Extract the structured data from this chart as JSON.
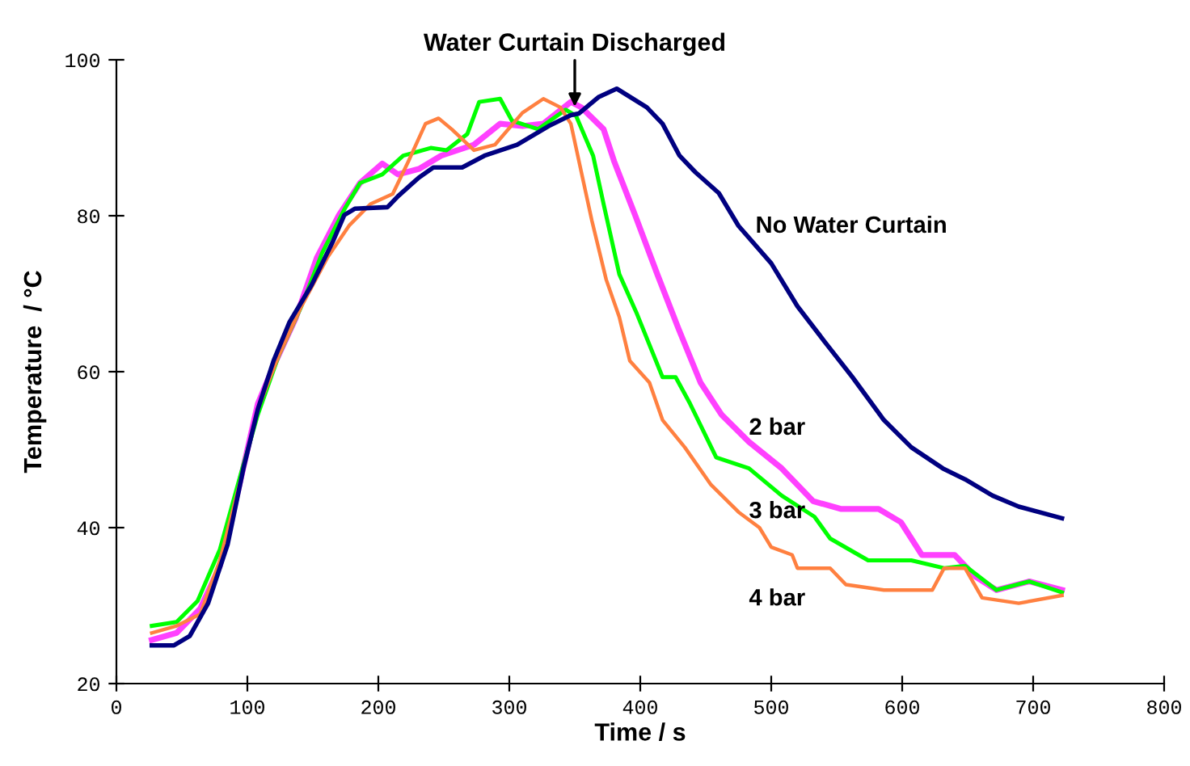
{
  "chart_data": {
    "type": "line",
    "xlabel": "Time / s",
    "ylabel": "Temperature  / °C",
    "xlim": [
      0,
      800
    ],
    "xticks": [
      0,
      100,
      200,
      300,
      400,
      500,
      600,
      700,
      800
    ],
    "ylim": [
      20,
      100
    ],
    "yticks": [
      20,
      40,
      60,
      80,
      100
    ],
    "grid": false,
    "legend": false,
    "marker": "none",
    "line_style": "solid",
    "annotations": [
      {
        "text": "Water Curtain Discharged",
        "x": 350,
        "y": 94
      }
    ],
    "series": [
      {
        "name": "No Water Curtain",
        "color": "#000080",
        "x": [
          27,
          44,
          56,
          70,
          85,
          97,
          108,
          120,
          132,
          149,
          165,
          174,
          182,
          207,
          215,
          231,
          242,
          264,
          281,
          306,
          330,
          347,
          353,
          368,
          382,
          405,
          417,
          430,
          442,
          460,
          475,
          500,
          520,
          541,
          562,
          586,
          607,
          631,
          648,
          669,
          689,
          722
        ],
        "values": [
          24.9,
          24.9,
          26.1,
          30.3,
          37.9,
          47.6,
          55.2,
          61.4,
          66.3,
          71.1,
          76.6,
          80.1,
          80.9,
          81.1,
          82.5,
          84.9,
          86.2,
          86.2,
          87.7,
          89.1,
          91.5,
          92.9,
          93.1,
          95.2,
          96.3,
          93.9,
          91.8,
          87.7,
          85.6,
          82.9,
          78.7,
          73.9,
          68.4,
          63.8,
          59.3,
          53.8,
          50.3,
          47.6,
          46.2,
          44.1,
          42.7,
          41.2
        ]
      },
      {
        "name": "2 bar",
        "color": "#ff40ff",
        "x": [
          27,
          46,
          64,
          79,
          93,
          108,
          120,
          137,
          153,
          170,
          186,
          203,
          215,
          231,
          248,
          273,
          293,
          310,
          326,
          347,
          355,
          372,
          380,
          396,
          413,
          429,
          446,
          462,
          483,
          508,
          532,
          553,
          582,
          599,
          615,
          640,
          656,
          672,
          697,
          722
        ],
        "values": [
          25.6,
          26.5,
          29.6,
          35.1,
          44.8,
          55.9,
          60.7,
          66.9,
          74.6,
          80.1,
          84.2,
          86.7,
          85.3,
          86.0,
          87.7,
          89.1,
          91.8,
          91.5,
          91.8,
          94.6,
          93.9,
          91.1,
          87.0,
          80.1,
          72.5,
          65.6,
          58.6,
          54.5,
          51.0,
          47.6,
          43.4,
          42.4,
          42.4,
          40.7,
          36.5,
          36.5,
          33.7,
          32.0,
          33.1,
          32.0
        ]
      },
      {
        "name": "3 bar",
        "color": "#00ff00",
        "x": [
          27,
          46,
          62,
          79,
          95,
          108,
          124,
          141,
          157,
          174,
          186,
          203,
          219,
          240,
          252,
          268,
          277,
          293,
          302,
          322,
          343,
          351,
          364,
          372,
          384,
          397,
          417,
          427,
          438,
          458,
          483,
          508,
          533,
          545,
          574,
          607,
          632,
          648,
          672,
          697,
          722
        ],
        "values": [
          27.4,
          27.9,
          30.6,
          37.2,
          46.9,
          54.5,
          62.1,
          68.3,
          75.2,
          80.8,
          84.2,
          85.3,
          87.7,
          88.7,
          88.4,
          90.5,
          94.6,
          95.0,
          92.2,
          91.1,
          93.6,
          92.8,
          87.7,
          81.5,
          72.5,
          67.6,
          59.3,
          59.3,
          55.9,
          49.0,
          47.6,
          44.1,
          41.4,
          38.6,
          35.8,
          35.8,
          34.8,
          35.1,
          32.0,
          33.1,
          31.7
        ]
      },
      {
        "name": "4 bar",
        "color": "#ff8040",
        "x": [
          27,
          46,
          64,
          79,
          95,
          108,
          124,
          141,
          161,
          178,
          194,
          211,
          223,
          236,
          246,
          256,
          273,
          289,
          310,
          326,
          339,
          347,
          355,
          363,
          374,
          384,
          392,
          407,
          417,
          434,
          454,
          475,
          491,
          500,
          516,
          520,
          545,
          557,
          586,
          623,
          632,
          648,
          661,
          689,
          722
        ],
        "values": [
          26.5,
          27.4,
          28.9,
          35.8,
          46.2,
          55.2,
          62.1,
          68.3,
          74.6,
          78.8,
          81.5,
          82.8,
          87.0,
          91.8,
          92.5,
          91.1,
          88.4,
          89.1,
          93.2,
          95.0,
          93.9,
          91.8,
          85.6,
          79.4,
          71.8,
          67.0,
          61.4,
          58.6,
          53.8,
          50.3,
          45.5,
          42.0,
          40.0,
          37.5,
          36.5,
          34.8,
          34.8,
          32.7,
          32.0,
          32.0,
          34.8,
          34.8,
          31.0,
          30.3,
          31.3
        ]
      }
    ]
  }
}
